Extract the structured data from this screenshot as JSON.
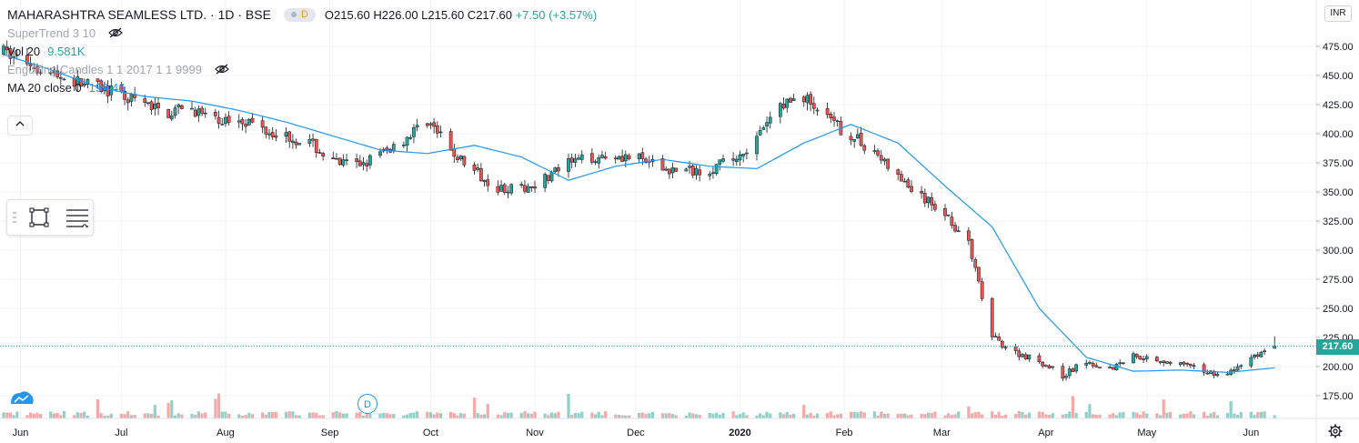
{
  "header": {
    "symbol_title": "MAHARASHTRA SEAMLESS LTD. · 1D · BSE",
    "badge": "D",
    "ohlc": {
      "o_label": "O",
      "o": "215.60",
      "h_label": "H",
      "h": "226.00",
      "l_label": "L",
      "l": "215.60",
      "c_label": "C",
      "c": "217.60",
      "change": "+7.50 (+3.57%)"
    }
  },
  "indicators": {
    "supertrend": {
      "label": "SuperTrend 3 10"
    },
    "volume": {
      "label": "Vol 20",
      "value": "9.581K"
    },
    "engulfing": {
      "label": "Engulfing Candles 1 1 2017 1 1 9999"
    },
    "ma": {
      "label": "MA 20 close 0",
      "value": "199.46"
    }
  },
  "currency": "INR",
  "last_price_label": "217.60",
  "event_marker": "D",
  "colors": {
    "up": "#26a69a",
    "down": "#ef5350",
    "ma": "#2196f3",
    "up_vol": "#8fd1c9",
    "down_vol": "#f6a9a7"
  },
  "chart_data": {
    "type": "candlestick",
    "title": "MAHARASHTRA SEAMLESS LTD. · 1D · BSE",
    "ylim": [
      150,
      500
    ],
    "y_ticks": [
      175,
      200,
      225,
      250,
      275,
      300,
      325,
      350,
      375,
      400,
      425,
      450,
      475
    ],
    "x_tick_labels": [
      "Jun",
      "Jul",
      "Aug",
      "Sep",
      "Oct",
      "Nov",
      "Dec",
      "2020",
      "Feb",
      "Mar",
      "Apr",
      "May",
      "Jun"
    ],
    "x_tick_dates": [
      "2019-06-01",
      "2019-07-01",
      "2019-08-01",
      "2019-09-01",
      "2019-10-01",
      "2019-11-01",
      "2019-12-01",
      "2020-01-01",
      "2020-02-01",
      "2020-03-01",
      "2020-04-01",
      "2020-05-01",
      "2020-06-01"
    ],
    "x_range": [
      "2019-05-27",
      "2020-06-12"
    ],
    "last_close": 217.6,
    "close_path": [
      [
        "2019-05-27",
        470
      ],
      [
        "2019-06-03",
        462
      ],
      [
        "2019-06-10",
        452
      ],
      [
        "2019-06-17",
        445
      ],
      [
        "2019-06-24",
        440
      ],
      [
        "2019-07-01",
        432
      ],
      [
        "2019-07-08",
        425
      ],
      [
        "2019-07-15",
        418
      ],
      [
        "2019-07-22",
        422
      ],
      [
        "2019-07-29",
        410
      ],
      [
        "2019-08-05",
        414
      ],
      [
        "2019-08-12",
        405
      ],
      [
        "2019-08-19",
        398
      ],
      [
        "2019-08-26",
        392
      ],
      [
        "2019-09-02",
        375
      ],
      [
        "2019-09-09",
        373
      ],
      [
        "2019-09-16",
        382
      ],
      [
        "2019-09-23",
        395
      ],
      [
        "2019-09-30",
        412
      ],
      [
        "2019-10-07",
        385
      ],
      [
        "2019-10-14",
        368
      ],
      [
        "2019-10-21",
        354
      ],
      [
        "2019-10-28",
        352
      ],
      [
        "2019-11-04",
        362
      ],
      [
        "2019-11-11",
        374
      ],
      [
        "2019-11-18",
        380
      ],
      [
        "2019-11-25",
        382
      ],
      [
        "2019-12-02",
        378
      ],
      [
        "2019-12-09",
        370
      ],
      [
        "2019-12-16",
        368
      ],
      [
        "2019-12-23",
        370
      ],
      [
        "2019-12-30",
        378
      ],
      [
        "2020-01-06",
        395
      ],
      [
        "2020-01-13",
        425
      ],
      [
        "2020-01-20",
        432
      ],
      [
        "2020-01-27",
        412
      ],
      [
        "2020-02-03",
        398
      ],
      [
        "2020-02-10",
        385
      ],
      [
        "2020-02-17",
        362
      ],
      [
        "2020-02-24",
        345
      ],
      [
        "2020-03-02",
        332
      ],
      [
        "2020-03-09",
        305
      ],
      [
        "2020-03-16",
        225
      ],
      [
        "2020-03-23",
        212
      ],
      [
        "2020-03-30",
        205
      ],
      [
        "2020-04-06",
        192
      ],
      [
        "2020-04-13",
        205
      ],
      [
        "2020-04-20",
        198
      ],
      [
        "2020-04-27",
        210
      ],
      [
        "2020-05-04",
        206
      ],
      [
        "2020-05-11",
        202
      ],
      [
        "2020-05-18",
        196
      ],
      [
        "2020-05-25",
        193
      ],
      [
        "2020-06-01",
        208
      ],
      [
        "2020-06-08",
        217.6
      ]
    ],
    "ma_path": [
      [
        "2019-05-27",
        468
      ],
      [
        "2019-06-10",
        455
      ],
      [
        "2019-06-24",
        440
      ],
      [
        "2019-07-08",
        432
      ],
      [
        "2019-07-22",
        428
      ],
      [
        "2019-08-05",
        420
      ],
      [
        "2019-08-19",
        410
      ],
      [
        "2019-09-02",
        398
      ],
      [
        "2019-09-16",
        386
      ],
      [
        "2019-09-30",
        383
      ],
      [
        "2019-10-14",
        390
      ],
      [
        "2019-10-28",
        380
      ],
      [
        "2019-11-11",
        360
      ],
      [
        "2019-11-25",
        372
      ],
      [
        "2019-12-09",
        378
      ],
      [
        "2019-12-23",
        372
      ],
      [
        "2020-01-06",
        370
      ],
      [
        "2020-01-20",
        392
      ],
      [
        "2020-02-03",
        408
      ],
      [
        "2020-02-17",
        392
      ],
      [
        "2020-03-02",
        355
      ],
      [
        "2020-03-16",
        320
      ],
      [
        "2020-03-30",
        250
      ],
      [
        "2020-04-13",
        208
      ],
      [
        "2020-04-27",
        196
      ],
      [
        "2020-05-11",
        197
      ],
      [
        "2020-05-25",
        195
      ],
      [
        "2020-06-10",
        199.46
      ]
    ]
  }
}
